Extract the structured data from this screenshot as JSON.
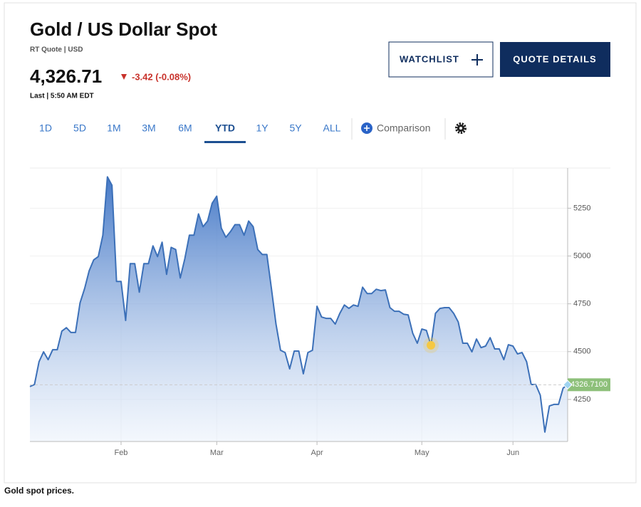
{
  "header": {
    "title": "Gold / US Dollar Spot",
    "quote_type": "RT Quote | USD",
    "price": "4,326.71",
    "change": "-3.42 (-0.08%)",
    "last_time": "Last | 5:50 AM EDT",
    "watchlist_button": "WATCHLIST",
    "details_button": "QUOTE DETAILS"
  },
  "tabs": [
    {
      "label": "1D"
    },
    {
      "label": "5D"
    },
    {
      "label": "1M"
    },
    {
      "label": "3M"
    },
    {
      "label": "6M"
    },
    {
      "label": "YTD",
      "selected": true
    },
    {
      "label": "1Y"
    },
    {
      "label": "5Y"
    },
    {
      "label": "ALL"
    }
  ],
  "comparison": "Comparison",
  "caption": "Gold spot prices.",
  "chart_data": {
    "type": "area",
    "color": "#3c70b8",
    "grid": true,
    "ylim": [
      4030,
      5460
    ],
    "yticks": [
      4250,
      4500,
      4750,
      5000,
      5250
    ],
    "highlight": {
      "index": 88,
      "color": "#f5c842"
    },
    "categories": [
      null,
      null,
      null,
      null,
      null,
      null,
      null,
      null,
      null,
      null,
      null,
      null,
      null,
      null,
      null,
      null,
      null,
      null,
      null,
      null,
      "Feb",
      null,
      null,
      null,
      null,
      null,
      null,
      null,
      null,
      null,
      null,
      null,
      null,
      null,
      null,
      null,
      null,
      null,
      null,
      null,
      null,
      "Mar",
      null,
      null,
      null,
      null,
      null,
      null,
      null,
      null,
      null,
      null,
      null,
      null,
      null,
      null,
      null,
      null,
      null,
      null,
      null,
      null,
      null,
      "Apr",
      null,
      null,
      null,
      null,
      null,
      null,
      null,
      null,
      null,
      null,
      null,
      null,
      null,
      null,
      null,
      null,
      null,
      null,
      null,
      null,
      null,
      null,
      "May",
      null,
      null,
      null,
      null,
      null,
      null,
      null,
      null,
      null,
      null,
      null,
      null,
      null,
      null,
      null,
      null,
      null,
      null,
      null,
      "Jun",
      null,
      null,
      null,
      null,
      null,
      null,
      null,
      null,
      null,
      null,
      null,
      null
    ],
    "values": [
      4317,
      4328,
      4447,
      4499,
      4458,
      4510,
      4510,
      4607,
      4625,
      4600,
      4600,
      4755,
      4830,
      4923,
      4980,
      4997,
      5109,
      5414,
      5370,
      4867,
      4867,
      4663,
      4960,
      4960,
      4811,
      4960,
      4960,
      5053,
      4997,
      5072,
      4904,
      5045,
      5034,
      4885,
      4986,
      5109,
      5109,
      5220,
      5153,
      5183,
      5276,
      5313,
      5146,
      5098,
      5127,
      5164,
      5164,
      5109,
      5183,
      5153,
      5034,
      5008,
      5008,
      4830,
      4644,
      4507,
      4495,
      4410,
      4503,
      4503,
      4384,
      4495,
      4507,
      4737,
      4681,
      4674,
      4674,
      4644,
      4700,
      4744,
      4726,
      4744,
      4737,
      4837,
      4804,
      4804,
      4826,
      4819,
      4823,
      4730,
      4711,
      4711,
      4696,
      4692,
      4596,
      4544,
      4618,
      4611,
      4533,
      4700,
      4726,
      4730,
      4730,
      4700,
      4655,
      4544,
      4544,
      4499,
      4566,
      4521,
      4529,
      4573,
      4514,
      4514,
      4458,
      4536,
      4529,
      4488,
      4495,
      4447,
      4328,
      4328,
      4272,
      4079,
      4216,
      4224,
      4224,
      4309,
      4326.71
    ],
    "value_labels": [
      null,
      null,
      null,
      null,
      null,
      null,
      null,
      null,
      null,
      null,
      null,
      null,
      null,
      null,
      null,
      null,
      null,
      null,
      null,
      null,
      null,
      null,
      null,
      null,
      null,
      null,
      null,
      null,
      null,
      null,
      null,
      null,
      null,
      null,
      null,
      null,
      null,
      null,
      null,
      null,
      null,
      null,
      null,
      null,
      null,
      null,
      null,
      null,
      null,
      null,
      null,
      null,
      null,
      null,
      null,
      null,
      null,
      null,
      null,
      null,
      null,
      null,
      null,
      null,
      null,
      null,
      null,
      null,
      null,
      null,
      null,
      null,
      null,
      null,
      null,
      null,
      null,
      null,
      null,
      null,
      null,
      null,
      null,
      null,
      null,
      null,
      null,
      null,
      null,
      null,
      null,
      null,
      null,
      null,
      null,
      null,
      null,
      null,
      null,
      null,
      null,
      null,
      null,
      null,
      null,
      null,
      null,
      null,
      null,
      null,
      null,
      null,
      null,
      null,
      null,
      null,
      null,
      null,
      "4326.7100"
    ]
  }
}
